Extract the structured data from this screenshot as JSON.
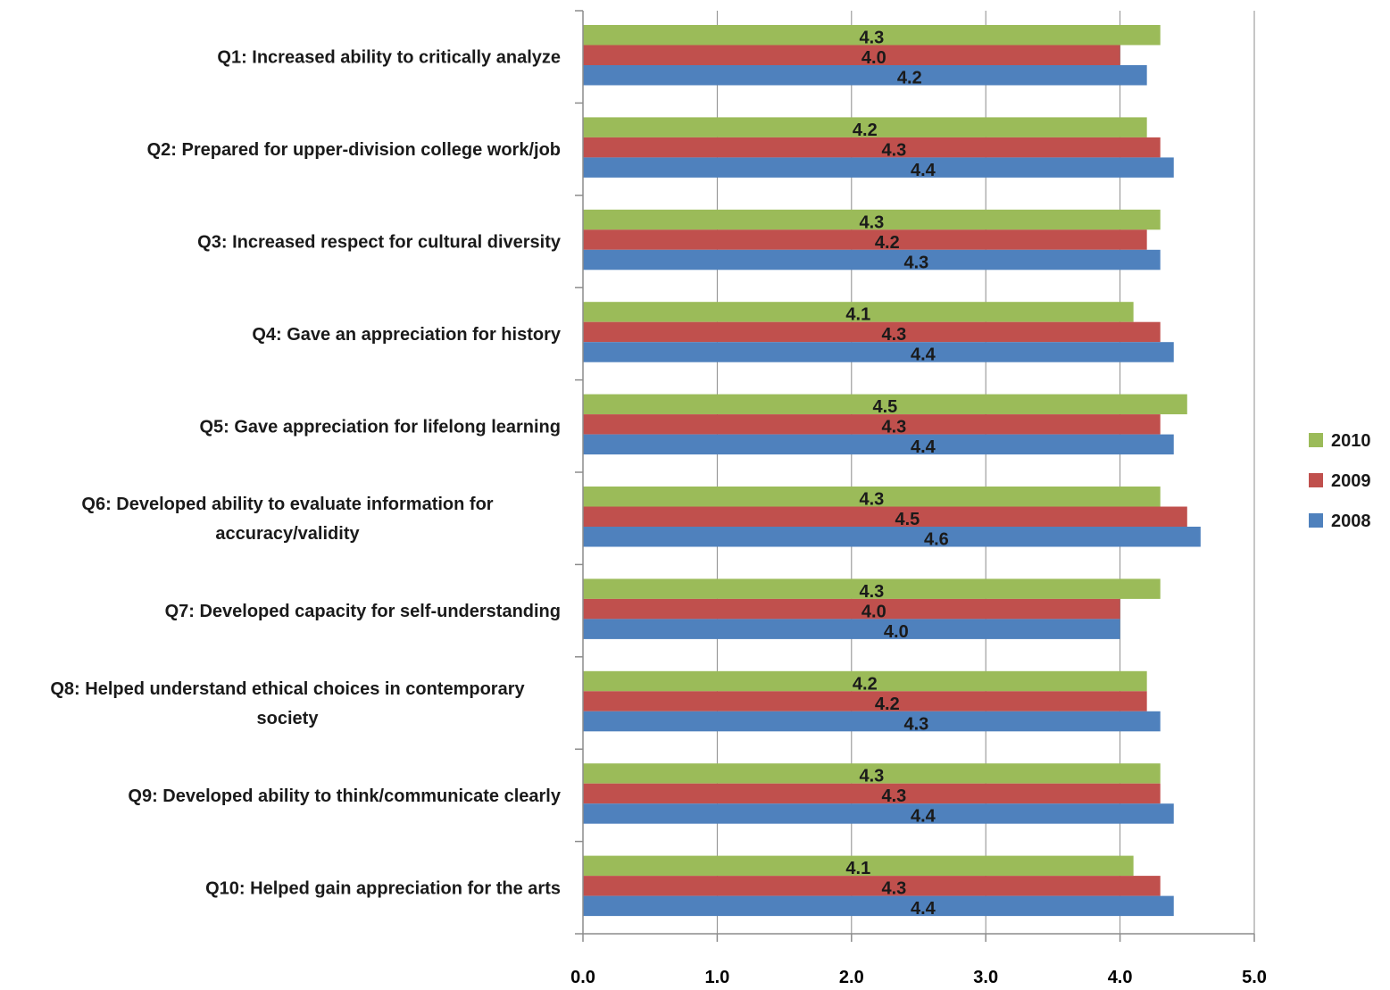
{
  "chart_data": {
    "type": "bar",
    "orientation": "horizontal",
    "categories": [
      [
        "Q1: Increased ability to critically analyze"
      ],
      [
        "Q2: Prepared for upper-division college work/job"
      ],
      [
        "Q3: Increased respect for cultural diversity"
      ],
      [
        "Q4: Gave an appreciation for history"
      ],
      [
        "Q5: Gave appreciation for lifelong learning"
      ],
      [
        "Q6: Developed ability to evaluate information for",
        "accuracy/validity"
      ],
      [
        "Q7: Developed capacity for self-understanding"
      ],
      [
        "Q8: Helped understand ethical choices in contemporary",
        "society"
      ],
      [
        "Q9: Developed ability to think/communicate clearly"
      ],
      [
        "Q10: Helped gain appreciation for the arts"
      ]
    ],
    "series": [
      {
        "name": "2010",
        "color": "#9bbb59",
        "values": [
          4.3,
          4.2,
          4.3,
          4.1,
          4.5,
          4.3,
          4.3,
          4.2,
          4.3,
          4.1
        ]
      },
      {
        "name": "2009",
        "color": "#c0504d",
        "values": [
          4.0,
          4.3,
          4.2,
          4.3,
          4.3,
          4.5,
          4.0,
          4.2,
          4.3,
          4.3
        ]
      },
      {
        "name": "2008",
        "color": "#4f81bd",
        "values": [
          4.2,
          4.4,
          4.3,
          4.4,
          4.4,
          4.6,
          4.0,
          4.3,
          4.4,
          4.4
        ]
      }
    ],
    "xlim": [
      0,
      5
    ],
    "xticks": [
      "0.0",
      "1.0",
      "2.0",
      "3.0",
      "4.0",
      "5.0"
    ],
    "grid": "vertical",
    "legend": {
      "position": "right",
      "entries": [
        "2010",
        "2009",
        "2008"
      ]
    }
  }
}
